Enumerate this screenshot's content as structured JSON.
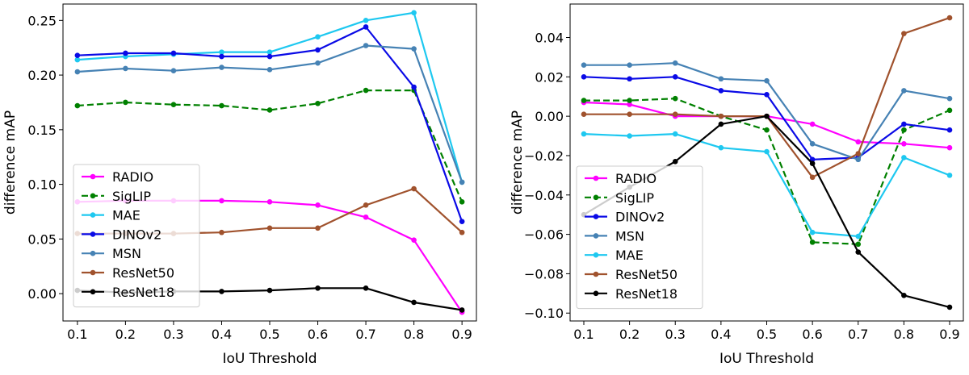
{
  "chart_data": [
    {
      "type": "line",
      "title": "",
      "xlabel": "IoU Threshold",
      "ylabel": "difference mAP",
      "x": [
        0.1,
        0.2,
        0.3,
        0.4,
        0.5,
        0.6,
        0.7,
        0.8,
        0.9
      ],
      "xlim": [
        0.07,
        0.93
      ],
      "ylim": [
        -0.025,
        0.265
      ],
      "xticks": [
        "0.1",
        "0.2",
        "0.3",
        "0.4",
        "0.5",
        "0.6",
        "0.7",
        "0.8",
        "0.9"
      ],
      "yticks": [
        0.0,
        0.05,
        0.1,
        0.15,
        0.2,
        0.25
      ],
      "ytick_labels": [
        "0.00",
        "0.05",
        "0.10",
        "0.15",
        "0.20",
        "0.25"
      ],
      "legend_position": "lower-left",
      "series": [
        {
          "name": "RADIO",
          "color": "#ff00ff",
          "dashed": false,
          "values": [
            0.084,
            0.085,
            0.085,
            0.085,
            0.084,
            0.081,
            0.07,
            0.049,
            -0.017
          ]
        },
        {
          "name": "SigLIP",
          "color": "#008000",
          "dashed": true,
          "values": [
            0.172,
            0.175,
            0.173,
            0.172,
            0.168,
            0.174,
            0.186,
            0.186,
            0.084
          ]
        },
        {
          "name": "MAE",
          "color": "#1ec8f0",
          "dashed": false,
          "values": [
            0.214,
            0.217,
            0.219,
            0.221,
            0.221,
            0.235,
            0.25,
            0.257,
            0.102
          ]
        },
        {
          "name": "DINOv2",
          "color": "#0a0ae6",
          "dashed": false,
          "values": [
            0.218,
            0.22,
            0.22,
            0.217,
            0.217,
            0.223,
            0.244,
            0.189,
            0.066
          ]
        },
        {
          "name": "MSN",
          "color": "#4682b4",
          "dashed": false,
          "values": [
            0.203,
            0.206,
            0.204,
            0.207,
            0.205,
            0.211,
            0.227,
            0.224,
            0.102
          ]
        },
        {
          "name": "ResNet50",
          "color": "#a0522d",
          "dashed": false,
          "values": [
            0.055,
            0.055,
            0.055,
            0.056,
            0.06,
            0.06,
            0.081,
            0.096,
            0.056
          ]
        },
        {
          "name": "ResNet18",
          "color": "#000000",
          "dashed": false,
          "values": [
            0.003,
            0.001,
            0.002,
            0.002,
            0.003,
            0.005,
            0.005,
            -0.008,
            -0.015
          ]
        }
      ]
    },
    {
      "type": "line",
      "title": "",
      "xlabel": "IoU Threshold",
      "ylabel": "difference mAP",
      "x": [
        0.1,
        0.2,
        0.3,
        0.4,
        0.5,
        0.6,
        0.7,
        0.8,
        0.9
      ],
      "xlim": [
        0.07,
        0.93
      ],
      "ylim": [
        -0.104,
        0.057
      ],
      "xticks": [
        "0.1",
        "0.2",
        "0.3",
        "0.4",
        "0.5",
        "0.6",
        "0.7",
        "0.8",
        "0.9"
      ],
      "yticks": [
        -0.1,
        -0.08,
        -0.06,
        -0.04,
        -0.02,
        0.0,
        0.02,
        0.04
      ],
      "ytick_labels": [
        "−0.10",
        "−0.08",
        "−0.06",
        "−0.04",
        "−0.02",
        "0.00",
        "0.02",
        "0.04"
      ],
      "legend_position": "lower-left",
      "series": [
        {
          "name": "RADIO",
          "color": "#ff00ff",
          "dashed": false,
          "values": [
            0.007,
            0.006,
            0.0,
            0.0,
            0.0,
            -0.004,
            -0.013,
            -0.014,
            -0.016
          ]
        },
        {
          "name": "SigLIP",
          "color": "#008000",
          "dashed": true,
          "values": [
            0.008,
            0.008,
            0.009,
            0.0,
            -0.007,
            -0.064,
            -0.065,
            -0.007,
            0.003
          ]
        },
        {
          "name": "DINOv2",
          "color": "#0a0ae6",
          "dashed": false,
          "values": [
            0.02,
            0.019,
            0.02,
            0.013,
            0.011,
            -0.022,
            -0.021,
            -0.004,
            -0.007
          ]
        },
        {
          "name": "MSN",
          "color": "#4682b4",
          "dashed": false,
          "values": [
            0.026,
            0.026,
            0.027,
            0.019,
            0.018,
            -0.014,
            -0.022,
            0.013,
            0.009
          ]
        },
        {
          "name": "MAE",
          "color": "#1ec8f0",
          "dashed": false,
          "values": [
            -0.009,
            -0.01,
            -0.009,
            -0.016,
            -0.018,
            -0.059,
            -0.061,
            -0.021,
            -0.03
          ]
        },
        {
          "name": "ResNet50",
          "color": "#a0522d",
          "dashed": false,
          "values": [
            0.001,
            0.001,
            0.001,
            0.0,
            0.0,
            -0.031,
            -0.019,
            0.042,
            0.05
          ]
        },
        {
          "name": "ResNet18",
          "color": "#000000",
          "dashed": false,
          "values": [
            -0.05,
            -0.036,
            -0.023,
            -0.004,
            0.0,
            -0.024,
            -0.069,
            -0.091,
            -0.097
          ]
        }
      ]
    }
  ]
}
